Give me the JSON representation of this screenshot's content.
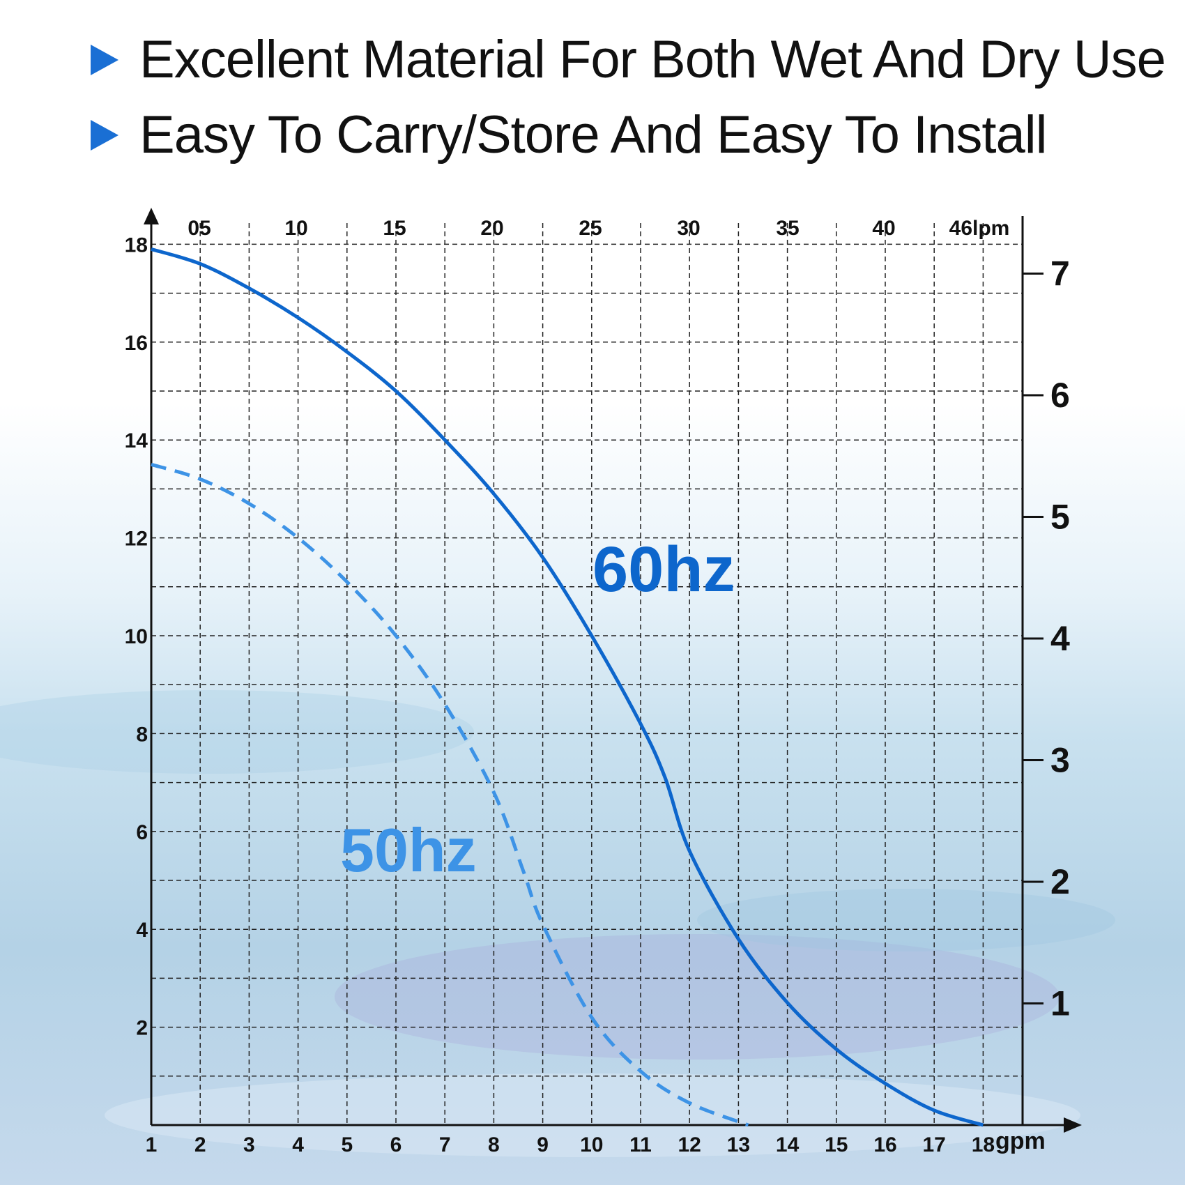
{
  "features": [
    {
      "icon": "triangle-bullet-icon",
      "text": "Excellent Material For Both Wet And Dry Use"
    },
    {
      "icon": "triangle-bullet-icon",
      "text": "Easy To Carry/Store And Easy To Install"
    }
  ],
  "colors": {
    "bullet": "#1a6fd4",
    "curve60": "#0d66cc",
    "curve50": "#3d93e6",
    "grid": "#222222"
  },
  "chart_data": {
    "type": "line",
    "x_bottom": {
      "label": "gpm",
      "range": [
        1,
        18
      ],
      "ticks": [
        "1",
        "2",
        "3",
        "4",
        "5",
        "6",
        "7",
        "8",
        "9",
        "10",
        "11",
        "12",
        "13",
        "14",
        "15",
        "16",
        "17",
        "18"
      ]
    },
    "x_top": {
      "ticks": [
        "05",
        "10",
        "15",
        "20",
        "25",
        "30",
        "35",
        "40",
        "46lpm"
      ]
    },
    "y_left": {
      "range": [
        0,
        18
      ],
      "ticks": [
        "2",
        "4",
        "6",
        "8",
        "10",
        "12",
        "14",
        "16",
        "18"
      ]
    },
    "y_right": {
      "range": [
        0,
        7.1
      ],
      "ticks": [
        "1",
        "2",
        "3",
        "4",
        "5",
        "6",
        "7"
      ]
    },
    "grid": true,
    "series": [
      {
        "name": "60hz",
        "style": "solid",
        "points": [
          [
            1,
            17.9
          ],
          [
            2,
            17.6
          ],
          [
            3,
            17.1
          ],
          [
            4,
            16.5
          ],
          [
            5,
            15.8
          ],
          [
            6,
            15.0
          ],
          [
            7,
            14.0
          ],
          [
            8,
            12.9
          ],
          [
            9,
            11.6
          ],
          [
            10,
            10.0
          ],
          [
            11,
            8.2
          ],
          [
            11.5,
            7.1
          ],
          [
            12,
            5.6
          ],
          [
            13,
            3.8
          ],
          [
            14,
            2.5
          ],
          [
            15,
            1.55
          ],
          [
            16,
            0.85
          ],
          [
            17,
            0.3
          ],
          [
            18,
            0.0
          ]
        ]
      },
      {
        "name": "50hz",
        "style": "dashed",
        "points": [
          [
            1,
            13.5
          ],
          [
            2,
            13.2
          ],
          [
            3,
            12.7
          ],
          [
            4,
            12.0
          ],
          [
            5,
            11.1
          ],
          [
            6,
            10.0
          ],
          [
            7,
            8.6
          ],
          [
            8,
            6.8
          ],
          [
            8.6,
            5.2
          ],
          [
            9,
            4.1
          ],
          [
            10,
            2.2
          ],
          [
            11,
            1.1
          ],
          [
            12,
            0.45
          ],
          [
            13.2,
            0.0
          ]
        ]
      }
    ]
  }
}
